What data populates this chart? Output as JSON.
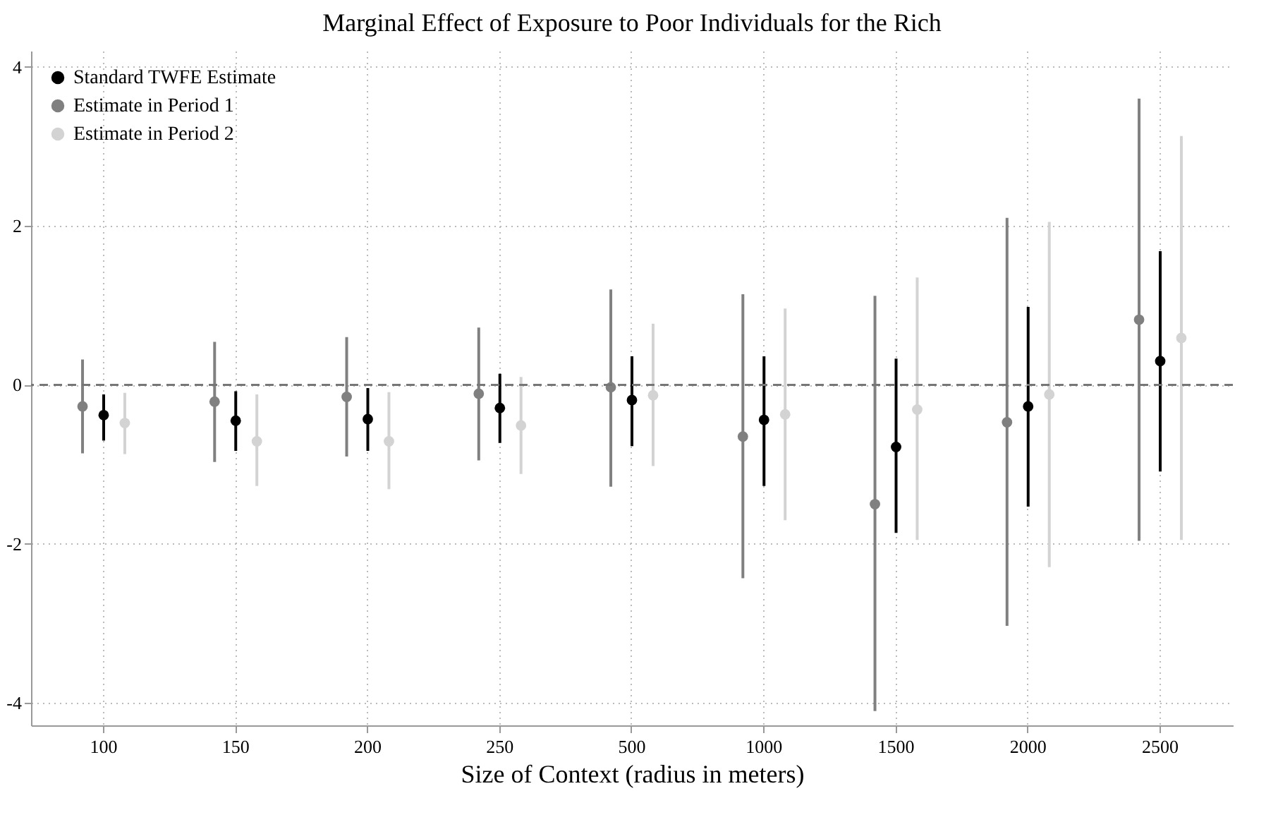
{
  "chart_data": {
    "type": "scatter",
    "title": "Marginal Effect of Exposure to Poor Individuals for the Rich",
    "xlabel": "Size of Context (radius in meters)",
    "categories": [
      "100",
      "150",
      "200",
      "250",
      "500",
      "1000",
      "1500",
      "2000",
      "2500"
    ],
    "series": [
      {
        "name": "Standard TWFE Estimate",
        "color": "#000000",
        "values": [
          -0.38,
          -0.45,
          -0.43,
          -0.29,
          -0.19,
          -0.44,
          -0.78,
          -0.27,
          0.3
        ],
        "errors": [
          [
            -0.7,
            -0.12
          ],
          [
            -0.83,
            -0.08
          ],
          [
            -0.83,
            -0.04
          ],
          [
            -0.73,
            0.14
          ],
          [
            -0.77,
            0.36
          ],
          [
            -1.27,
            0.36
          ],
          [
            -1.86,
            0.33
          ],
          [
            -1.53,
            0.98
          ],
          [
            -1.09,
            1.68
          ]
        ]
      },
      {
        "name": "Estimate in Period 1",
        "color": "#808080",
        "values": [
          -0.27,
          -0.21,
          -0.15,
          -0.11,
          -0.03,
          -0.65,
          -1.5,
          -0.47,
          0.82
        ],
        "errors": [
          [
            -0.86,
            0.32
          ],
          [
            -0.97,
            0.54
          ],
          [
            -0.9,
            0.6
          ],
          [
            -0.95,
            0.72
          ],
          [
            -1.28,
            1.2
          ],
          [
            -2.43,
            1.14
          ],
          [
            -4.1,
            1.12
          ],
          [
            -3.03,
            2.1
          ],
          [
            -1.96,
            3.6
          ]
        ]
      },
      {
        "name": "Estimate in Period 2",
        "color": "#d3d3d3",
        "values": [
          -0.48,
          -0.71,
          -0.71,
          -0.51,
          -0.13,
          -0.37,
          -0.31,
          -0.12,
          0.59
        ],
        "errors": [
          [
            -0.87,
            -0.1
          ],
          [
            -1.27,
            -0.12
          ],
          [
            -1.31,
            -0.09
          ],
          [
            -1.12,
            0.1
          ],
          [
            -1.02,
            0.77
          ],
          [
            -1.7,
            0.96
          ],
          [
            -1.95,
            1.35
          ],
          [
            -2.29,
            2.05
          ],
          [
            -1.95,
            3.13
          ]
        ]
      }
    ],
    "ylim": [
      -4.28,
      4.2
    ],
    "yticks": [
      -4,
      -2,
      0,
      2,
      4
    ],
    "ref_lines": [
      {
        "axis": "y",
        "value": 0,
        "color": "#777777",
        "line_style": "dashed"
      }
    ],
    "grid": true,
    "legend": "top left",
    "marker": "circle"
  }
}
